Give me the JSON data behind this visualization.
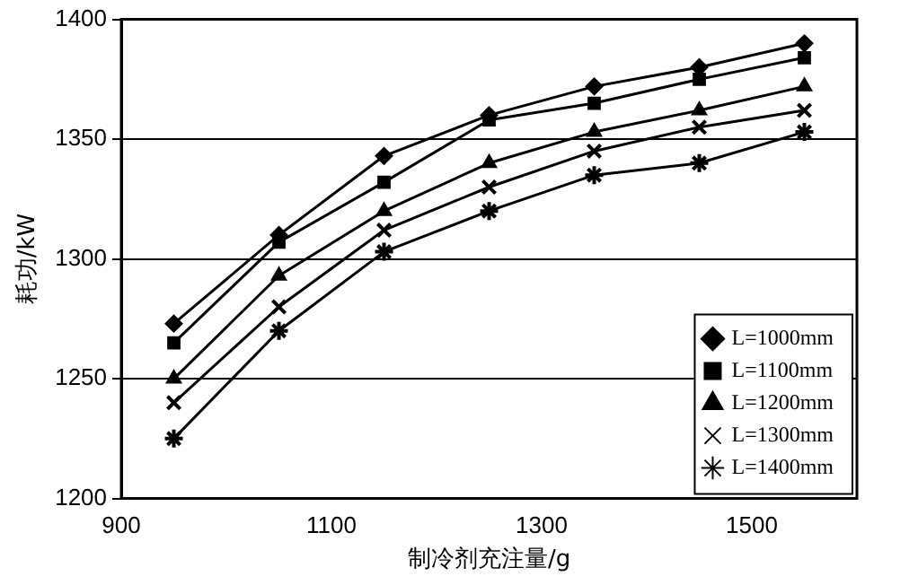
{
  "chart_data": {
    "type": "line",
    "xlabel": "制冷剂充注量/g",
    "ylabel": "耗功/kW",
    "x": [
      950,
      1050,
      1150,
      1250,
      1350,
      1450,
      1550
    ],
    "series": [
      {
        "name": "L=1000mm",
        "color": "#000000",
        "marker": "diamond",
        "values": [
          1273,
          1310,
          1343,
          1360,
          1372,
          1380,
          1390
        ]
      },
      {
        "name": "L=1100mm",
        "color": "#000000",
        "marker": "square",
        "values": [
          1265,
          1307,
          1332,
          1358,
          1365,
          1375,
          1384
        ]
      },
      {
        "name": "L=1200mm",
        "color": "#000000",
        "marker": "triangle",
        "values": [
          1250,
          1293,
          1320,
          1340,
          1353,
          1362,
          1372
        ]
      },
      {
        "name": "L=1300mm",
        "color": "#000000",
        "marker": "cross",
        "values": [
          1240,
          1280,
          1312,
          1330,
          1345,
          1355,
          1362
        ]
      },
      {
        "name": "L=1400mm",
        "color": "#000000",
        "marker": "cross",
        "values": [
          1225,
          1270,
          1303,
          1320,
          1335,
          1340,
          1353
        ]
      }
    ],
    "xlim": [
      900,
      1600
    ],
    "xticks": [
      900,
      1100,
      1300,
      1500
    ],
    "ylim": [
      1200,
      1400
    ],
    "yticks": [
      1200,
      1250,
      1300,
      1350,
      1400
    ],
    "grid": "y",
    "legend": "bottom right",
    "line_style": "solid"
  }
}
